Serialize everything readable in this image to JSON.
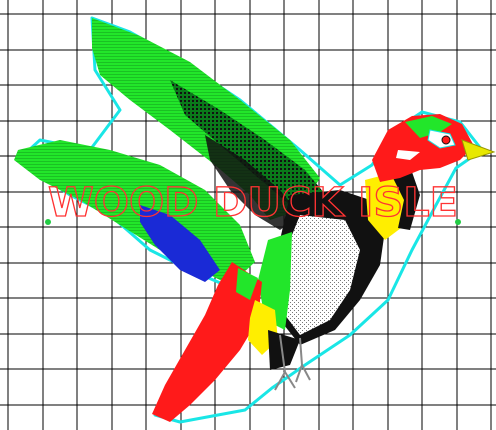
{
  "design": {
    "lettering": "WOOD DUCK ISLE",
    "colors": {
      "background": "#ffffff",
      "grid": "#000000",
      "lettering": "#ff3333",
      "outline": "#19e6e6",
      "wing_green": "#22e62a",
      "dark_green": "#0a7a1a",
      "black": "#111111",
      "red": "#ff1a1a",
      "yellow": "#ffee00",
      "blue": "#1a2ad6",
      "white": "#ffffff",
      "beak": "#e8e800",
      "marker": "#22cc44"
    }
  }
}
